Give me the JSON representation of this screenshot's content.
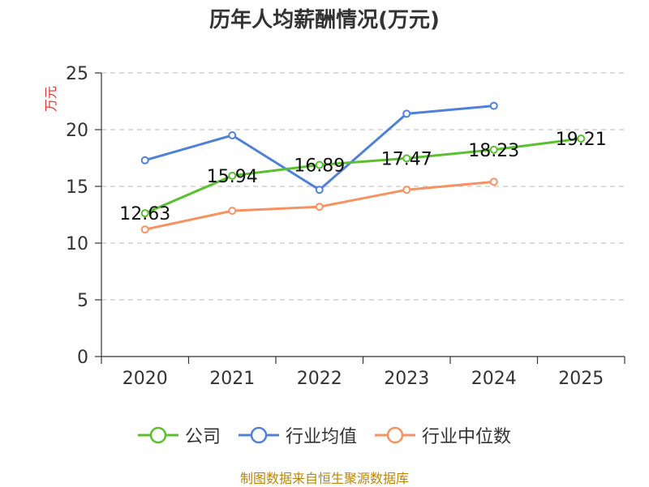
{
  "title": "历年人均薪酬情况(万元)",
  "source": "制图数据来自恒生聚源数据库",
  "colors": {
    "company": "#5ac02e",
    "industry_avg": "#4f81d9",
    "industry_median": "#f59262",
    "grid": "#c8c8c8",
    "axis": "#333333",
    "ylabel": "#e03030"
  },
  "chart_data": {
    "type": "line",
    "title": "历年人均薪酬情况(万元)",
    "ylabel": "万元",
    "xlabel": "",
    "categories": [
      "2020",
      "2021",
      "2022",
      "2023",
      "2024",
      "2025"
    ],
    "ylim": [
      0,
      25
    ],
    "yticks": [
      0,
      5,
      10,
      15,
      20,
      25
    ],
    "grid": true,
    "legend_position": "bottom",
    "series": [
      {
        "name": "公司",
        "key": "company",
        "values": [
          12.63,
          15.94,
          16.89,
          17.47,
          18.23,
          19.21
        ],
        "labels": [
          "12.63",
          "15.94",
          "16.89",
          "17.47",
          "18.23",
          "19.21"
        ]
      },
      {
        "name": "行业均值",
        "key": "industry_avg",
        "values": [
          17.3,
          19.5,
          14.7,
          21.4,
          22.1,
          null
        ]
      },
      {
        "name": "行业中位数",
        "key": "industry_median",
        "values": [
          11.2,
          12.85,
          13.2,
          14.7,
          15.4,
          null
        ]
      }
    ]
  }
}
